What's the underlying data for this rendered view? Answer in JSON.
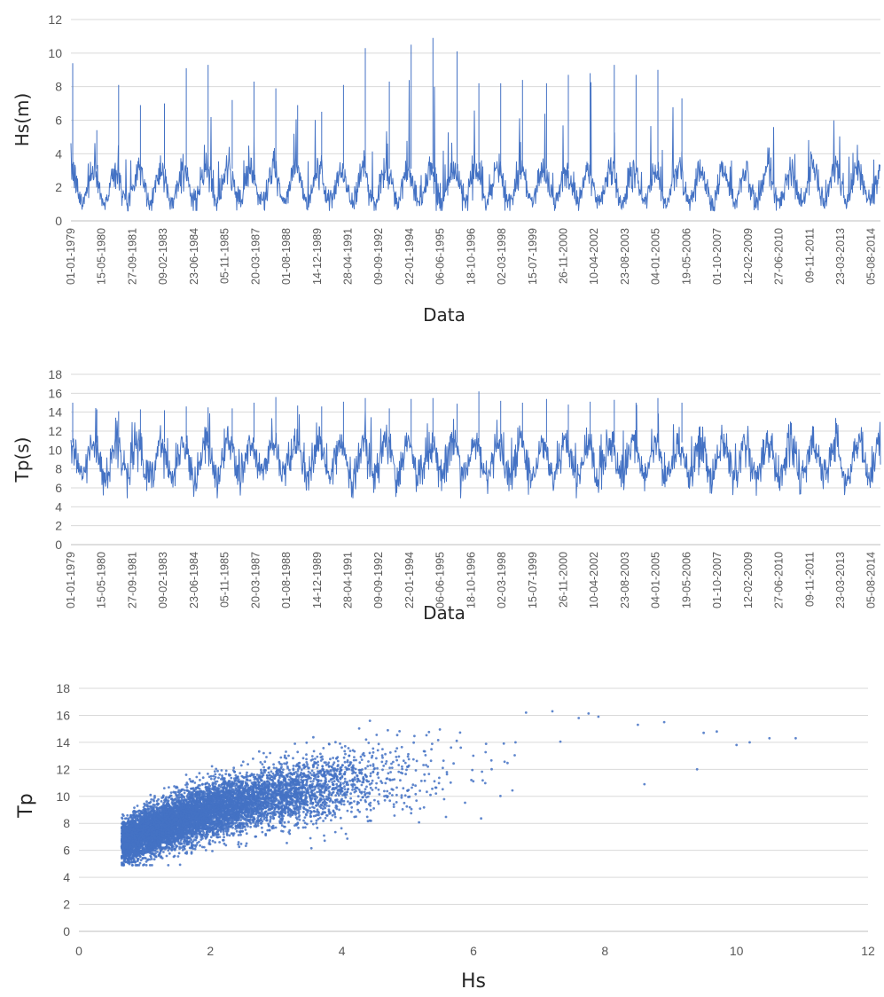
{
  "chart_data": [
    {
      "type": "line",
      "xlabel": "Data",
      "ylabel": "Hs(m)",
      "ylim": [
        0,
        12
      ],
      "yticks": [
        0,
        2,
        4,
        6,
        8,
        10,
        12
      ],
      "grid": true,
      "color": "#4472C4",
      "x_start": "01-01-1979",
      "x_end": "31-12-2014",
      "x_tick_labels": [
        "01-01-1979",
        "15-05-1980",
        "27-09-1981",
        "09-02-1983",
        "23-06-1984",
        "05-11-1985",
        "20-03-1987",
        "01-08-1988",
        "14-12-1989",
        "28-04-1991",
        "09-09-1992",
        "22-01-1994",
        "06-06-1995",
        "18-10-1996",
        "02-03-1998",
        "15-07-1999",
        "26-11-2000",
        "10-04-2002",
        "23-08-2003",
        "04-01-2005",
        "19-05-2006",
        "01-10-2007",
        "12-02-2009",
        "27-06-2010",
        "09-11-2011",
        "23-03-2013",
        "05-08-2014"
      ],
      "series": [
        {
          "typical_range": [
            0.8,
            6
          ],
          "annual_peaks": [
            9.4,
            5.4,
            8.1,
            6.9,
            7.0,
            9.1,
            9.3,
            7.2,
            8.3,
            7.9,
            6.9,
            6.5,
            8.1,
            10.3,
            8.3,
            10.5,
            10.9,
            10.1,
            8.2,
            8.2,
            8.4,
            8.2,
            8.7,
            8.8,
            9.3,
            8.7,
            9.0,
            7.3
          ]
        }
      ]
    },
    {
      "type": "line",
      "xlabel": "Data",
      "ylabel": "Tp(s)",
      "ylim": [
        0,
        18
      ],
      "yticks": [
        0,
        2,
        4,
        6,
        8,
        10,
        12,
        14,
        16,
        18
      ],
      "grid": true,
      "color": "#4472C4",
      "x_start": "01-01-1979",
      "x_end": "31-12-2014",
      "x_tick_labels": [
        "01-01-1979",
        "15-05-1980",
        "27-09-1981",
        "09-02-1983",
        "23-06-1984",
        "05-11-1985",
        "20-03-1987",
        "01-08-1988",
        "14-12-1989",
        "28-04-1991",
        "09-09-1992",
        "22-01-1994",
        "06-06-1995",
        "18-10-1996",
        "02-03-1998",
        "15-07-1999",
        "26-11-2000",
        "10-04-2002",
        "23-08-2003",
        "04-01-2005",
        "19-05-2006",
        "01-10-2007",
        "12-02-2009",
        "27-06-2010",
        "09-11-2011",
        "23-03-2013",
        "05-08-2014"
      ],
      "series": [
        {
          "typical_range": [
            5,
            14
          ],
          "annual_peaks": [
            15.0,
            14.3,
            14.1,
            14.3,
            14.2,
            14.6,
            14.5,
            14.4,
            15.0,
            15.6,
            14.7,
            14.6,
            15.1,
            15.5,
            14.4,
            15.4,
            15.5,
            14.9,
            16.2,
            15.2,
            15.0,
            15.4,
            14.8,
            15.1,
            15.3,
            15.0,
            15.5,
            15.0
          ]
        }
      ]
    },
    {
      "type": "scatter",
      "xlabel": "Hs",
      "ylabel": "Tp",
      "xlim": [
        0,
        12
      ],
      "ylim": [
        0,
        18
      ],
      "xticks": [
        0,
        2,
        4,
        6,
        8,
        10,
        12
      ],
      "yticks": [
        0,
        2,
        4,
        6,
        8,
        10,
        12,
        14,
        16,
        18
      ],
      "grid": true,
      "color": "#4472C4",
      "series": [
        {
          "trend": {
            "x": [
              0.6,
              1,
              2,
              3,
              4,
              5,
              6,
              7,
              8,
              9,
              10,
              11
            ],
            "y": [
              6.5,
              7.3,
              9.0,
              10.1,
              10.9,
              11.5,
              12.0,
              12.4,
              12.9,
              13.3,
              13.8,
              14.2
            ]
          },
          "outliers": {
            "x": [
              7.2,
              6.8,
              7.6,
              7.9,
              8.5,
              8.9,
              9.5,
              9.7,
              10.2,
              10.5,
              10.9,
              9.4,
              8.6,
              10.0
            ],
            "y": [
              16.3,
              16.2,
              15.8,
              15.9,
              15.3,
              15.5,
              14.7,
              14.8,
              14.0,
              14.3,
              14.3,
              12.0,
              10.9,
              13.8
            ]
          }
        }
      ]
    }
  ]
}
